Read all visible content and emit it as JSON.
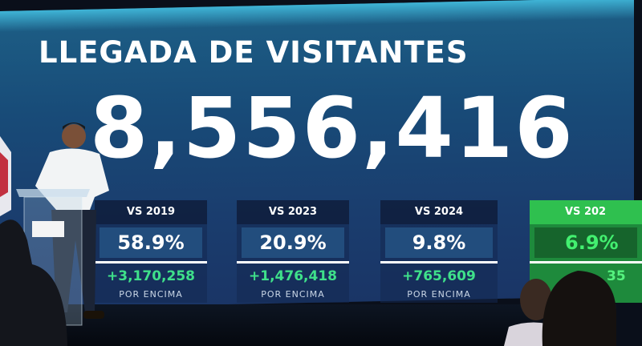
{
  "screen": {
    "title": "LLEGADA DE VISITANTES",
    "total": "8,556,416",
    "cards": [
      {
        "label": "VS 2019",
        "percent": "58.9%",
        "difference": "+3,170,258",
        "note": "POR ENCIMA"
      },
      {
        "label": "VS 2023",
        "percent": "20.9%",
        "difference": "+1,476,418",
        "note": "POR ENCIMA"
      },
      {
        "label": "VS 2024",
        "percent": "9.8%",
        "difference": "+765,609",
        "note": "POR ENCIMA"
      },
      {
        "label": "VS 202",
        "percent": "6.9%",
        "difference": "35"
      }
    ]
  }
}
